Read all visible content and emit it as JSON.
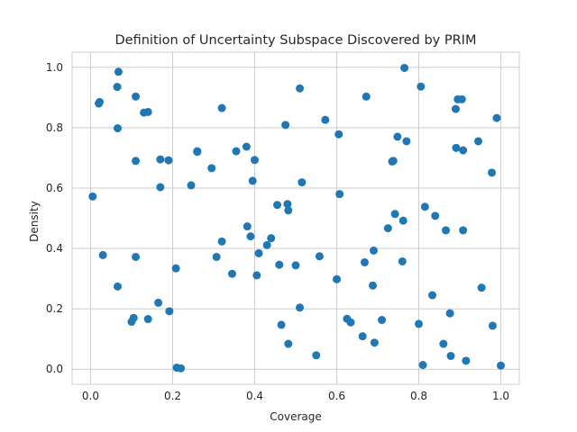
{
  "chart_data": {
    "type": "scatter",
    "title": "Definition of Uncertainty Subspace Discovered by PRIM",
    "xlabel": "Coverage",
    "ylabel": "Density",
    "xlim": [
      -0.045,
      1.045
    ],
    "ylim": [
      -0.05,
      1.05
    ],
    "xticks": [
      0.0,
      0.2,
      0.4,
      0.6,
      0.8,
      1.0
    ],
    "yticks": [
      0.0,
      0.2,
      0.4,
      0.6,
      0.8,
      1.0
    ],
    "xtick_labels": [
      "0.0",
      "0.2",
      "0.4",
      "0.6",
      "0.8",
      "1.0"
    ],
    "ytick_labels": [
      "0.0",
      "0.2",
      "0.4",
      "0.6",
      "0.8",
      "1.0"
    ],
    "grid": true,
    "point_color": "#1f77b4",
    "points": [
      [
        0.005,
        0.572
      ],
      [
        0.02,
        0.88
      ],
      [
        0.022,
        0.885
      ],
      [
        0.03,
        0.378
      ],
      [
        0.065,
        0.935
      ],
      [
        0.068,
        0.985
      ],
      [
        0.066,
        0.798
      ],
      [
        0.066,
        0.274
      ],
      [
        0.1,
        0.157
      ],
      [
        0.105,
        0.17
      ],
      [
        0.11,
        0.903
      ],
      [
        0.11,
        0.69
      ],
      [
        0.11,
        0.372
      ],
      [
        0.13,
        0.85
      ],
      [
        0.14,
        0.852
      ],
      [
        0.14,
        0.166
      ],
      [
        0.165,
        0.22
      ],
      [
        0.17,
        0.695
      ],
      [
        0.17,
        0.603
      ],
      [
        0.19,
        0.692
      ],
      [
        0.192,
        0.192
      ],
      [
        0.208,
        0.334
      ],
      [
        0.21,
        0.005
      ],
      [
        0.22,
        0.003
      ],
      [
        0.245,
        0.609
      ],
      [
        0.26,
        0.72
      ],
      [
        0.26,
        0.722
      ],
      [
        0.295,
        0.666
      ],
      [
        0.307,
        0.372
      ],
      [
        0.32,
        0.865
      ],
      [
        0.32,
        0.423
      ],
      [
        0.345,
        0.316
      ],
      [
        0.355,
        0.722
      ],
      [
        0.38,
        0.737
      ],
      [
        0.382,
        0.473
      ],
      [
        0.39,
        0.44
      ],
      [
        0.395,
        0.624
      ],
      [
        0.4,
        0.693
      ],
      [
        0.405,
        0.311
      ],
      [
        0.41,
        0.384
      ],
      [
        0.43,
        0.411
      ],
      [
        0.44,
        0.434
      ],
      [
        0.455,
        0.544
      ],
      [
        0.46,
        0.346
      ],
      [
        0.465,
        0.147
      ],
      [
        0.475,
        0.809
      ],
      [
        0.48,
        0.547
      ],
      [
        0.482,
        0.526
      ],
      [
        0.482,
        0.084
      ],
      [
        0.5,
        0.344
      ],
      [
        0.51,
        0.93
      ],
      [
        0.51,
        0.204
      ],
      [
        0.515,
        0.619
      ],
      [
        0.55,
        0.046
      ],
      [
        0.558,
        0.374
      ],
      [
        0.572,
        0.826
      ],
      [
        0.6,
        0.298
      ],
      [
        0.605,
        0.778
      ],
      [
        0.607,
        0.58
      ],
      [
        0.625,
        0.167
      ],
      [
        0.634,
        0.155
      ],
      [
        0.663,
        0.109
      ],
      [
        0.668,
        0.354
      ],
      [
        0.672,
        0.903
      ],
      [
        0.688,
        0.277
      ],
      [
        0.69,
        0.393
      ],
      [
        0.692,
        0.088
      ],
      [
        0.71,
        0.163
      ],
      [
        0.725,
        0.467
      ],
      [
        0.735,
        0.688
      ],
      [
        0.738,
        0.69
      ],
      [
        0.742,
        0.514
      ],
      [
        0.748,
        0.77
      ],
      [
        0.76,
        0.357
      ],
      [
        0.762,
        0.492
      ],
      [
        0.765,
        0.998
      ],
      [
        0.77,
        0.755
      ],
      [
        0.8,
        0.15
      ],
      [
        0.805,
        0.936
      ],
      [
        0.81,
        0.014
      ],
      [
        0.815,
        0.538
      ],
      [
        0.833,
        0.245
      ],
      [
        0.84,
        0.508
      ],
      [
        0.86,
        0.084
      ],
      [
        0.866,
        0.46
      ],
      [
        0.876,
        0.185
      ],
      [
        0.878,
        0.044
      ],
      [
        0.89,
        0.862
      ],
      [
        0.891,
        0.733
      ],
      [
        0.895,
        0.894
      ],
      [
        0.905,
        0.894
      ],
      [
        0.908,
        0.725
      ],
      [
        0.908,
        0.46
      ],
      [
        0.915,
        0.028
      ],
      [
        0.945,
        0.755
      ],
      [
        0.953,
        0.27
      ],
      [
        0.978,
        0.651
      ],
      [
        0.98,
        0.144
      ],
      [
        0.99,
        0.832
      ],
      [
        1.0,
        0.012
      ]
    ]
  }
}
